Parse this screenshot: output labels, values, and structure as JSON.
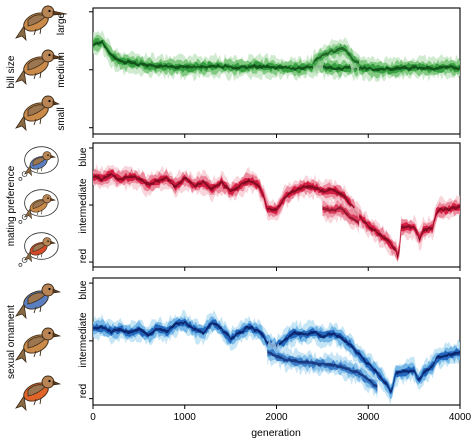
{
  "chart_data": [
    {
      "type": "area",
      "panel": "bill-size",
      "ylabel": "bill size",
      "y_tick_labels": [
        "small",
        "medium",
        "large"
      ],
      "ylim": [
        0,
        1
      ],
      "xlim": [
        0,
        4000
      ],
      "colors": [
        "#bfe3bf",
        "#79c779",
        "#2f9a3a",
        "#0d4a16"
      ],
      "series": [
        {
          "values": [
            [
              0,
              0.72
            ],
            [
              100,
              0.74
            ],
            [
              200,
              0.62
            ],
            [
              300,
              0.57
            ],
            [
              500,
              0.55
            ],
            [
              700,
              0.53
            ],
            [
              1000,
              0.52
            ],
            [
              1300,
              0.53
            ],
            [
              1600,
              0.52
            ],
            [
              1800,
              0.53
            ],
            [
              2000,
              0.52
            ],
            [
              2200,
              0.51
            ],
            [
              2400,
              0.53
            ],
            [
              2500,
              0.53
            ],
            [
              2700,
              0.51
            ],
            [
              2900,
              0.52
            ],
            [
              3100,
              0.5
            ],
            [
              3300,
              0.51
            ],
            [
              3500,
              0.52
            ],
            [
              3700,
              0.51
            ],
            [
              3900,
              0.52
            ],
            [
              4000,
              0.51
            ]
          ]
        },
        {
          "values": [
            [
              2400,
              0.56
            ],
            [
              2500,
              0.62
            ],
            [
              2600,
              0.66
            ],
            [
              2700,
              0.68
            ],
            [
              2750,
              0.68
            ],
            [
              2800,
              0.62
            ],
            [
              2900,
              0.55
            ]
          ]
        }
      ]
    },
    {
      "type": "area",
      "panel": "mating-preference",
      "ylabel": "mating preference",
      "y_tick_labels": [
        "red",
        "intermediate",
        "blue"
      ],
      "ylim": [
        0,
        1
      ],
      "xlim": [
        0,
        4000
      ],
      "colors": [
        "#f5c6cf",
        "#ea7f93",
        "#d2143a",
        "#7a0a20"
      ],
      "series": [
        {
          "values": [
            [
              0,
              0.75
            ],
            [
              100,
              0.73
            ],
            [
              200,
              0.77
            ],
            [
              300,
              0.72
            ],
            [
              400,
              0.75
            ],
            [
              500,
              0.73
            ],
            [
              600,
              0.68
            ],
            [
              700,
              0.71
            ],
            [
              800,
              0.74
            ],
            [
              900,
              0.66
            ],
            [
              1000,
              0.74
            ],
            [
              1100,
              0.67
            ],
            [
              1200,
              0.7
            ],
            [
              1300,
              0.64
            ],
            [
              1400,
              0.7
            ],
            [
              1500,
              0.62
            ],
            [
              1600,
              0.67
            ],
            [
              1700,
              0.72
            ],
            [
              1800,
              0.68
            ],
            [
              1850,
              0.6
            ],
            [
              1900,
              0.47
            ],
            [
              2000,
              0.45
            ],
            [
              2100,
              0.58
            ],
            [
              2200,
              0.63
            ],
            [
              2300,
              0.66
            ],
            [
              2400,
              0.66
            ],
            [
              2500,
              0.62
            ],
            [
              2600,
              0.63
            ],
            [
              2700,
              0.6
            ],
            [
              2800,
              0.52
            ],
            [
              2900,
              0.4
            ],
            [
              3000,
              0.32
            ],
            [
              3100,
              0.26
            ],
            [
              3200,
              0.2
            ],
            [
              3300,
              0.1
            ],
            [
              3330,
              0.02
            ],
            [
              3360,
              0.3
            ],
            [
              3500,
              0.31
            ],
            [
              3560,
              0.2
            ],
            [
              3600,
              0.28
            ],
            [
              3700,
              0.3
            ],
            [
              3750,
              0.45
            ],
            [
              3900,
              0.47
            ],
            [
              4000,
              0.49
            ]
          ]
        },
        {
          "values": [
            [
              2500,
              0.47
            ],
            [
              2600,
              0.45
            ],
            [
              2700,
              0.47
            ],
            [
              2800,
              0.4
            ],
            [
              2900,
              0.35
            ]
          ]
        }
      ]
    },
    {
      "type": "area",
      "panel": "sexual-ornament",
      "ylabel": "sexual ornament",
      "y_tick_labels": [
        "red",
        "intermediate",
        "blue"
      ],
      "ylim": [
        0,
        1
      ],
      "xlim": [
        0,
        4000
      ],
      "colors": [
        "#b3dcf2",
        "#6cb2e6",
        "#1c5fb8",
        "#0a1f66"
      ],
      "series": [
        {
          "values": [
            [
              0,
              0.6
            ],
            [
              100,
              0.62
            ],
            [
              200,
              0.58
            ],
            [
              300,
              0.6
            ],
            [
              400,
              0.57
            ],
            [
              500,
              0.6
            ],
            [
              600,
              0.55
            ],
            [
              700,
              0.61
            ],
            [
              800,
              0.58
            ],
            [
              900,
              0.64
            ],
            [
              1000,
              0.66
            ],
            [
              1100,
              0.6
            ],
            [
              1200,
              0.57
            ],
            [
              1300,
              0.66
            ],
            [
              1400,
              0.6
            ],
            [
              1500,
              0.52
            ],
            [
              1600,
              0.57
            ],
            [
              1700,
              0.62
            ],
            [
              1800,
              0.58
            ],
            [
              1850,
              0.55
            ],
            [
              1900,
              0.48
            ],
            [
              2000,
              0.45
            ],
            [
              2100,
              0.51
            ],
            [
              2200,
              0.57
            ],
            [
              2300,
              0.55
            ],
            [
              2400,
              0.58
            ],
            [
              2500,
              0.54
            ],
            [
              2600,
              0.56
            ],
            [
              2700,
              0.53
            ],
            [
              2800,
              0.47
            ],
            [
              2900,
              0.38
            ],
            [
              3000,
              0.3
            ],
            [
              3100,
              0.22
            ],
            [
              3200,
              0.13
            ],
            [
              3250,
              0.05
            ],
            [
              3300,
              0.22
            ],
            [
              3500,
              0.25
            ],
            [
              3550,
              0.15
            ],
            [
              3600,
              0.22
            ],
            [
              3700,
              0.28
            ],
            [
              3750,
              0.36
            ],
            [
              3900,
              0.38
            ],
            [
              4000,
              0.4
            ]
          ]
        },
        {
          "values": [
            [
              1900,
              0.4
            ],
            [
              2100,
              0.34
            ],
            [
              2300,
              0.31
            ],
            [
              2500,
              0.3
            ],
            [
              2700,
              0.28
            ],
            [
              2900,
              0.22
            ],
            [
              3000,
              0.16
            ],
            [
              3100,
              0.1
            ]
          ]
        }
      ]
    }
  ],
  "x_axis": {
    "label": "generation",
    "tick_values": [
      0,
      1000,
      2000,
      3000,
      4000
    ],
    "tick_labels": [
      "0",
      "1000",
      "2000",
      "3000",
      "4000"
    ]
  },
  "birds": [
    {
      "panel": 0,
      "icon": "bird-large-bill-icon",
      "bill": "#8a5a2b",
      "breast": "#c98a4a"
    },
    {
      "panel": 0,
      "icon": "bird-medium-bill-icon",
      "bill": "#8a5a2b",
      "breast": "#c98a4a"
    },
    {
      "panel": 0,
      "icon": "bird-small-bill-icon",
      "bill": "#8a5a2b",
      "breast": "#c98a4a"
    },
    {
      "panel": 1,
      "icon": "thought-bubble-blue-bird-icon",
      "breast": "#5a7fc0"
    },
    {
      "panel": 1,
      "icon": "thought-bubble-brown-bird-icon",
      "breast": "#c98a4a"
    },
    {
      "panel": 1,
      "icon": "thought-bubble-red-bird-icon",
      "breast": "#d64a2a"
    },
    {
      "panel": 2,
      "icon": "bird-blue-ornament-icon",
      "breast": "#5a7fc0"
    },
    {
      "panel": 2,
      "icon": "bird-brown-ornament-icon",
      "breast": "#c98a4a"
    },
    {
      "panel": 2,
      "icon": "bird-orange-ornament-icon",
      "breast": "#e0642a"
    }
  ]
}
